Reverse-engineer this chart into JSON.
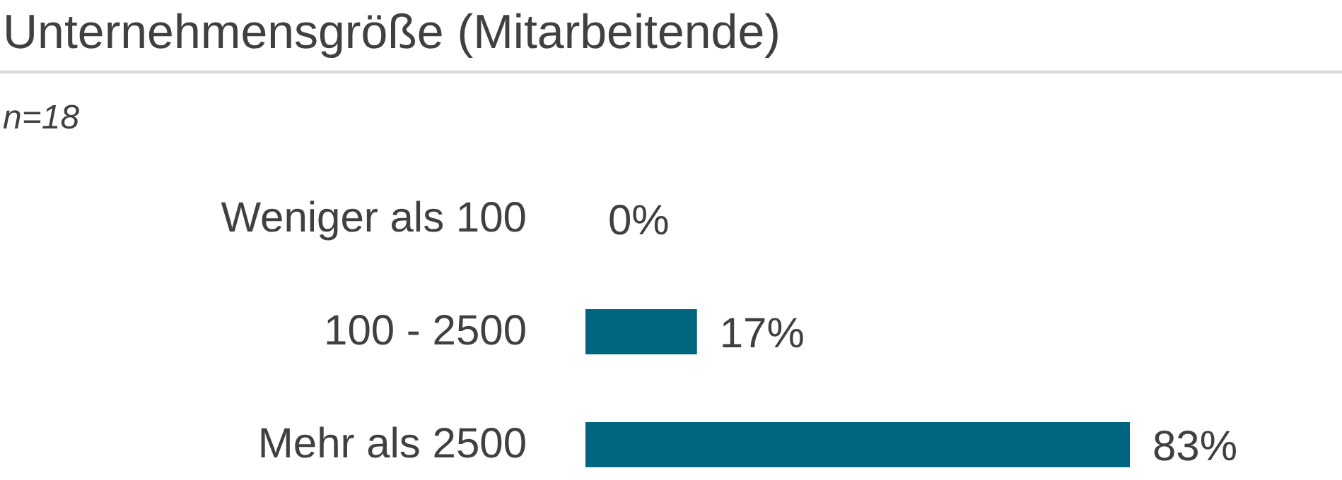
{
  "chart_data": {
    "type": "bar",
    "orientation": "horizontal",
    "title": "Unternehmensgröße (Mitarbeitende)",
    "subtitle": "n=18",
    "categories": [
      "Weniger als 100",
      "100 - 2500",
      "Mehr als 2500"
    ],
    "values": [
      0,
      17,
      83
    ],
    "value_labels": [
      "0%",
      "17%",
      "83%"
    ],
    "color": "#00657f"
  }
}
